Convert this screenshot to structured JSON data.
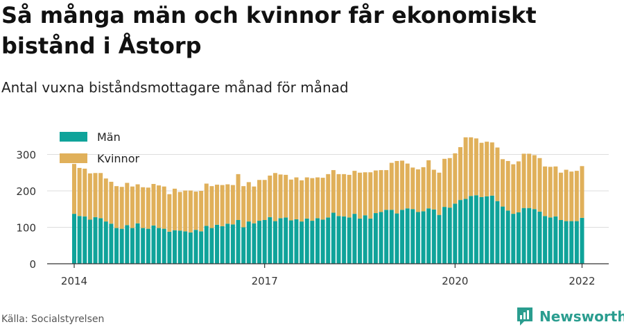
{
  "title": "Så många män och kvinnor får ekonomiskt bistånd i Åstorp",
  "subtitle": "Antal vuxna biståndsmottagare månad för månad",
  "source": "Källa: Socialstyrelsen",
  "brand": {
    "name": "Newsworthy",
    "icon": "newsworthy-logo-icon"
  },
  "colors": {
    "men": "#0fa39a",
    "women": "#e0b05a",
    "grid": "#dddddd",
    "axis": "#333333"
  },
  "chart_data": {
    "type": "bar",
    "stacked": true,
    "legend": {
      "position": "top-left"
    },
    "grid": true,
    "ylim": [
      0,
      300
    ],
    "yticks": [
      0,
      100,
      200,
      300
    ],
    "xtick_labels": [
      {
        "label": "2014",
        "index": 0
      },
      {
        "label": "2017",
        "index": 36
      },
      {
        "label": "2020",
        "index": 72
      },
      {
        "label": "2022",
        "index": 96
      }
    ],
    "series": [
      {
        "name": "Män",
        "values": [
          137,
          131,
          130,
          121,
          128,
          125,
          116,
          110,
          98,
          96,
          106,
          98,
          111,
          98,
          96,
          105,
          98,
          96,
          88,
          92,
          91,
          89,
          86,
          93,
          89,
          104,
          98,
          107,
          103,
          110,
          108,
          120,
          100,
          116,
          111,
          118,
          120,
          128,
          117,
          125,
          127,
          119,
          122,
          116,
          124,
          118,
          125,
          121,
          127,
          140,
          131,
          130,
          127,
          137,
          124,
          133,
          124,
          139,
          142,
          148,
          148,
          138,
          148,
          152,
          150,
          142,
          144,
          152,
          149,
          134,
          156,
          154,
          165,
          175,
          178,
          186,
          188,
          183,
          185,
          187,
          172,
          157,
          146,
          137,
          141,
          153,
          153,
          150,
          143,
          131,
          127,
          130,
          120,
          117,
          117,
          117,
          126
        ]
      },
      {
        "name": "Kvinnor",
        "values": [
          137,
          132,
          131,
          127,
          121,
          124,
          118,
          115,
          115,
          115,
          116,
          114,
          107,
          112,
          113,
          114,
          117,
          116,
          103,
          114,
          106,
          112,
          115,
          105,
          111,
          116,
          115,
          110,
          113,
          108,
          108,
          126,
          113,
          108,
          101,
          112,
          110,
          114,
          132,
          120,
          117,
          112,
          115,
          113,
          113,
          117,
          112,
          115,
          119,
          117,
          115,
          116,
          117,
          118,
          126,
          118,
          127,
          117,
          115,
          109,
          129,
          144,
          135,
          123,
          114,
          117,
          121,
          132,
          109,
          116,
          132,
          136,
          138,
          145,
          169,
          161,
          156,
          149,
          150,
          146,
          147,
          130,
          136,
          136,
          140,
          149,
          149,
          148,
          147,
          136,
          139,
          137,
          130,
          141,
          136,
          138,
          142
        ]
      }
    ]
  }
}
